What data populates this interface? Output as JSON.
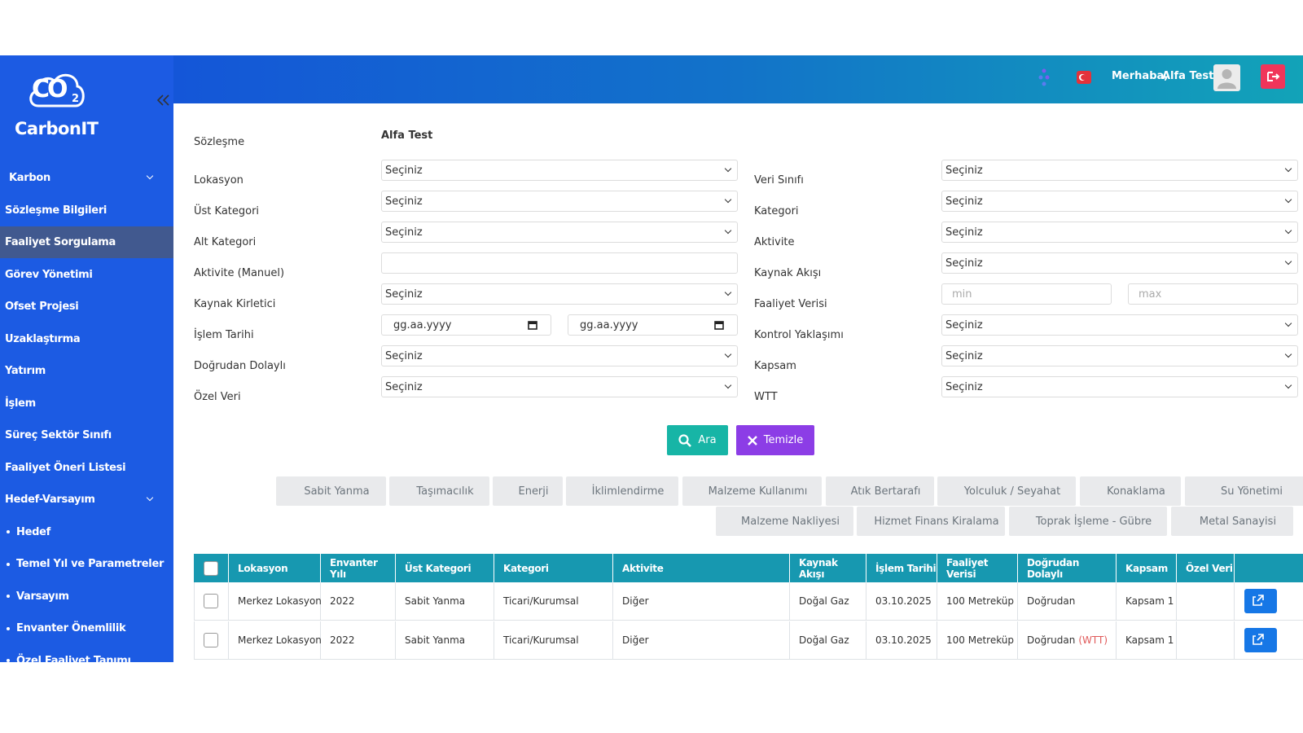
{
  "brand": {
    "logo": "CO",
    "logo_sub": "2",
    "name": "CarbonIT"
  },
  "sidebar": {
    "items": [
      {
        "label": "Karbon",
        "expand": true
      },
      {
        "label": "Sözleşme Bilgileri"
      },
      {
        "label": "Faaliyet Sorgulama",
        "active": true
      },
      {
        "label": "Görev Yönetimi"
      },
      {
        "label": "Ofset Projesi"
      },
      {
        "label": "Uzaklaştırma"
      },
      {
        "label": "Yatırım"
      },
      {
        "label": "İşlem"
      },
      {
        "label": "Süreç Sektör Sınıfı"
      },
      {
        "label": "Faaliyet Öneri Listesi"
      },
      {
        "label": "Hedef-Varsayım",
        "expand": true
      },
      {
        "label": "Hedef",
        "sub": true
      },
      {
        "label": "Temel Yıl ve Parametreler",
        "sub": true
      },
      {
        "label": "Varsayım",
        "sub": true
      },
      {
        "label": "Envanter Önemlilik",
        "sub": true
      },
      {
        "label": "Özel Faaliyet Tanımı",
        "sub": true
      }
    ]
  },
  "header": {
    "greeting": "Merhaba,",
    "user": "Alfa Test"
  },
  "form": {
    "contract_label": "Sözleşme",
    "contract_value": "Alfa Test",
    "left_fields": [
      {
        "label": "Lokasyon",
        "kind": "select",
        "text": [
          "Seçiniz"
        ]
      },
      {
        "label": "Üst Kategori",
        "kind": "select",
        "text": [
          "Seçiniz"
        ]
      },
      {
        "label": "Alt Kategori",
        "kind": "select",
        "text": [
          "Seçiniz"
        ]
      },
      {
        "label": "Aktivite (Manuel)",
        "kind": "text",
        "text": []
      },
      {
        "label": "Kaynak Kirletici",
        "kind": "select",
        "text": [
          "Seçiniz"
        ]
      },
      {
        "label": "İşlem Tarihi",
        "kind": "date",
        "text": [
          "gg.aa.yyyy",
          "gg.aa.yyyy"
        ]
      },
      {
        "label": "Doğrudan Dolaylı",
        "kind": "select",
        "text": [
          "Seçiniz"
        ]
      },
      {
        "label": "Özel Veri",
        "kind": "select",
        "text": [
          "Seçiniz"
        ]
      }
    ],
    "right_fields": [
      {
        "label": "Veri Sınıfı",
        "kind": "select",
        "text": [
          "Seçiniz"
        ]
      },
      {
        "label": "Kategori",
        "kind": "select",
        "text": [
          "Seçiniz"
        ]
      },
      {
        "label": "Aktivite",
        "kind": "select",
        "text": [
          "Seçiniz"
        ]
      },
      {
        "label": "Kaynak Akışı",
        "kind": "select",
        "text": [
          "Seçiniz"
        ]
      },
      {
        "label": "Faaliyet Verisi",
        "kind": "range",
        "text": [
          "min",
          "max"
        ]
      },
      {
        "label": "Kontrol Yaklaşımı",
        "kind": "select",
        "text": [
          "Seçiniz"
        ]
      },
      {
        "label": "Kapsam",
        "kind": "select",
        "text": [
          "Seçiniz"
        ]
      },
      {
        "label": "WTT",
        "kind": "select",
        "text": [
          "Seçiniz"
        ]
      }
    ]
  },
  "buttons": {
    "search": "Ara",
    "clear": "Temizle"
  },
  "tabs": [
    [
      "Sabit Yanma",
      "Taşımacılık",
      "Enerji",
      "İklimlendirme",
      "Malzeme Kullanımı",
      "Atık Bertarafı",
      "Yolculuk / Seyahat",
      "Konaklama",
      "Su Yönetimi"
    ],
    [
      "Malzeme Nakliyesi",
      "Hizmet Finans Kiralama",
      "Toprak İşleme - Gübre",
      "Metal Sanayisi"
    ]
  ],
  "table": {
    "columns": [
      "Lokasyon",
      "Envanter Yılı",
      "Üst Kategori",
      "Kategori",
      "Aktivite",
      "Kaynak Akışı",
      "İşlem Tarihi",
      "Faaliyet Verisi",
      "Doğrudan Dolaylı",
      "Kapsam",
      "Özel Veri"
    ],
    "rows": [
      {
        "cells": [
          "Merkez Lokasyon",
          "2022",
          "Sabit Yanma",
          "Ticari/Kurumsal",
          "Diğer",
          "Doğal Gaz",
          "03.10.2025",
          "100 Metreküp",
          "Doğrudan",
          "Kapsam 1",
          ""
        ]
      },
      {
        "cells": [
          "Merkez Lokasyon",
          "2022",
          "Sabit Yanma",
          "Ticari/Kurumsal",
          "Diğer",
          "Doğal Gaz",
          "03.10.2025",
          "100 Metreküp",
          "Doğrudan",
          "Kapsam 1",
          ""
        ],
        "tag": "(WTT)"
      }
    ]
  }
}
